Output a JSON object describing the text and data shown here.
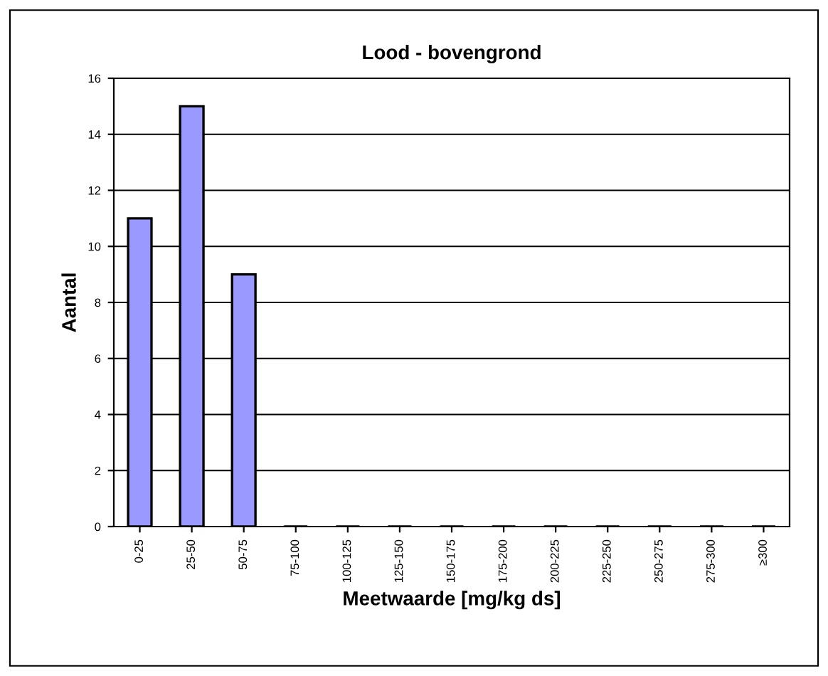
{
  "chart_data": {
    "type": "bar",
    "title": "Lood - bovengrond",
    "xlabel": "Meetwaarde [mg/kg ds]",
    "ylabel": "Aantal",
    "categories": [
      "0-25",
      "25-50",
      "50-75",
      "75-100",
      "100-125",
      "125-150",
      "150-175",
      "175-200",
      "200-225",
      "225-250",
      "250-275",
      "275-300",
      "≥300"
    ],
    "values": [
      11,
      15,
      9,
      0,
      0,
      0,
      0,
      0,
      0,
      0,
      0,
      0,
      0
    ],
    "color": "#9999ff",
    "ylim": [
      0,
      16
    ],
    "yticks": [
      0,
      2,
      4,
      6,
      8,
      10,
      12,
      14,
      16
    ],
    "grid": "y",
    "legend": false
  }
}
